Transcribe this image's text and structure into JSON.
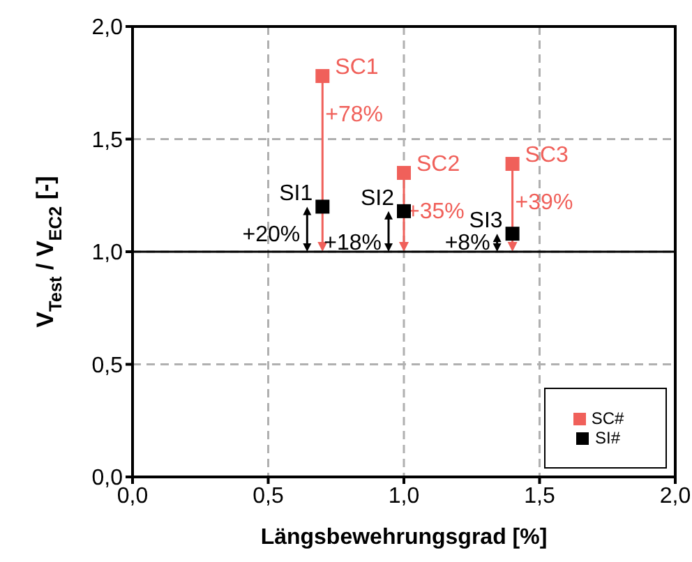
{
  "chart_data": {
    "type": "scatter",
    "xlabel": "Längsbewehrungsgrad [%]",
    "ylabel": "V$_{Test}$ / V$_{EC2}$ [-]",
    "xlim": [
      0,
      2
    ],
    "ylim": [
      0,
      2
    ],
    "xticks": [
      {
        "value": 0,
        "label": "0,0"
      },
      {
        "value": 0.5,
        "label": "0,5"
      },
      {
        "value": 1,
        "label": "1,0"
      },
      {
        "value": 1.5,
        "label": "1,5"
      },
      {
        "value": 2,
        "label": "2,0"
      }
    ],
    "yticks": [
      {
        "value": 0,
        "label": "0,0"
      },
      {
        "value": 0.5,
        "label": "0,5"
      },
      {
        "value": 1,
        "label": "1,0"
      },
      {
        "value": 1.5,
        "label": "1,5"
      },
      {
        "value": 2,
        "label": "2,0"
      }
    ],
    "x": [
      0.7,
      1.0,
      1.4
    ],
    "series": [
      {
        "name": "SI#",
        "color": "#000000",
        "values": [
          1.2,
          1.18,
          1.08
        ]
      },
      {
        "name": "SC#",
        "color": "#f0605a",
        "values": [
          1.78,
          1.35,
          1.39
        ]
      }
    ],
    "marker": "square",
    "grid": true,
    "legend": "bottom right",
    "ref_lines": [
      {
        "axis": "y",
        "value": 1,
        "color": "#000000",
        "line_style": "solid"
      }
    ],
    "annotations": [
      {
        "text": "SC1",
        "x": 0.7,
        "y": 1.78
      },
      {
        "text": "+78%",
        "x": 0.7,
        "y": 1.78
      },
      {
        "text": "SI1",
        "x": 0.7,
        "y": 1.2
      },
      {
        "text": "+20%",
        "x": 0.7,
        "y": 1.2
      },
      {
        "text": "SC2",
        "x": 1.0,
        "y": 1.35
      },
      {
        "text": "+35%",
        "x": 1.0,
        "y": 1.35
      },
      {
        "text": "SI2",
        "x": 1.0,
        "y": 1.18
      },
      {
        "text": "+18%",
        "x": 1.0,
        "y": 1.18
      },
      {
        "text": "SC3",
        "x": 1.4,
        "y": 1.39
      },
      {
        "text": "+39%",
        "x": 1.4,
        "y": 1.39
      },
      {
        "text": "SI3",
        "x": 1.4,
        "y": 1.08
      },
      {
        "text": "+8%",
        "x": 1.4,
        "y": 1.08
      }
    ]
  }
}
